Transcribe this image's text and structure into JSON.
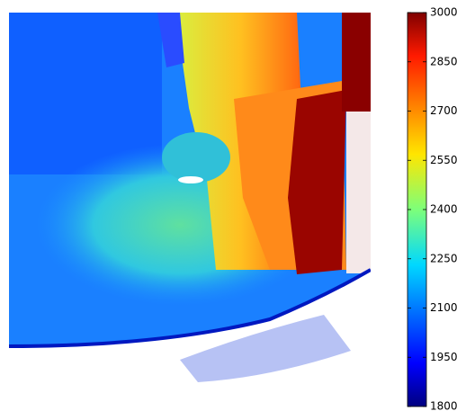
{
  "chart_data": {
    "type": "heatmap",
    "colormap": "jet",
    "clim": [
      1800,
      3000
    ],
    "cticks": [
      1800,
      1950,
      2100,
      2250,
      2400,
      2550,
      2700,
      2850,
      3000
    ]
  }
}
